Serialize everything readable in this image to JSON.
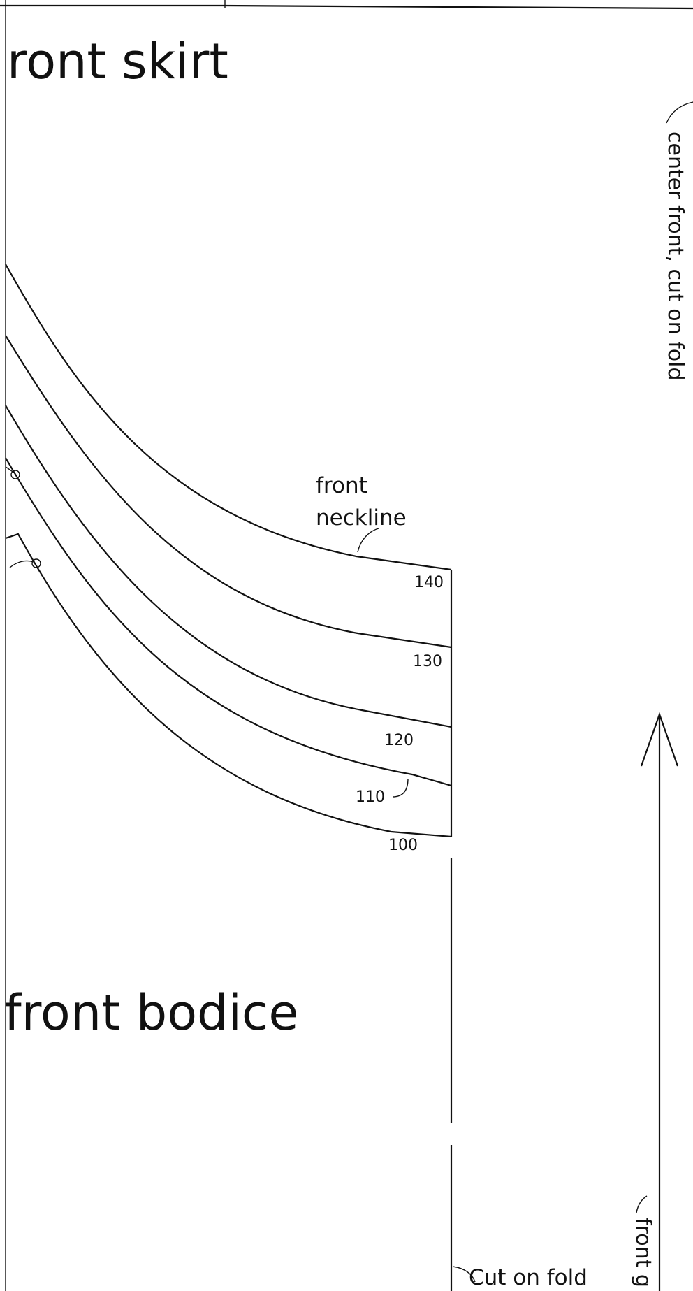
{
  "pattern_sheet": {
    "titles": {
      "skirt": "ront skirt",
      "bodice": "front bodice"
    },
    "labels": {
      "neckline_line1": "front",
      "neckline_line2": "neckline",
      "center_front": "center front, cut on fold",
      "cut_on_fold": "Cut on fold",
      "grainline": "front g"
    },
    "sizes": [
      "140",
      "130",
      "120",
      "110",
      "100"
    ]
  }
}
